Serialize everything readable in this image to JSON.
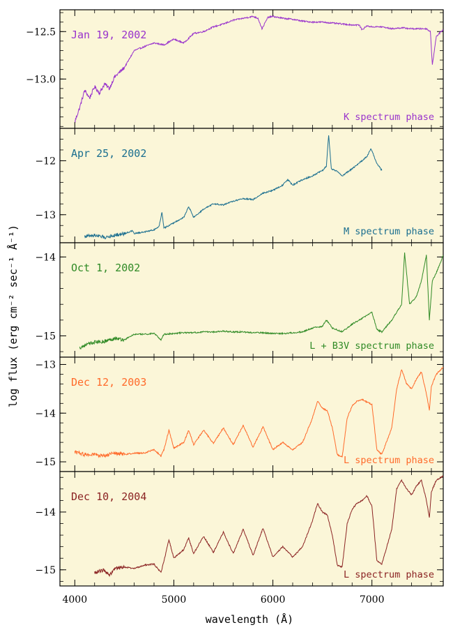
{
  "chart_data": {
    "type": "line",
    "xlabel": "wavelength (Å)",
    "ylabel": "log flux (erg cm⁻² sec⁻¹ Å⁻¹)",
    "xlim": [
      3850,
      7720
    ],
    "x_ticks": [
      4000,
      5000,
      6000,
      7000
    ],
    "background": "#fbf6d8",
    "panels": [
      {
        "date": "Jan 19, 2002",
        "phase": "K spectrum phase",
        "color": "#9933cc",
        "ylim": [
          -13.52,
          -12.27
        ],
        "y_ticks": [
          -13.0,
          -12.5
        ],
        "y_tick_labels": [
          "−13.0",
          "−12.5"
        ],
        "x": [
          4000,
          4050,
          4100,
          4150,
          4200,
          4250,
          4300,
          4350,
          4400,
          4500,
          4600,
          4700,
          4800,
          4900,
          5000,
          5100,
          5200,
          5300,
          5400,
          5500,
          5600,
          5700,
          5800,
          5850,
          5890,
          5950,
          6000,
          6100,
          6200,
          6300,
          6400,
          6500,
          6600,
          6700,
          6800,
          6870,
          6900,
          6950,
          7000,
          7100,
          7200,
          7300,
          7400,
          7500,
          7550,
          7590,
          7610,
          7650,
          7720
        ],
        "y": [
          -13.45,
          -13.3,
          -13.12,
          -13.2,
          -13.08,
          -13.15,
          -13.05,
          -13.1,
          -12.98,
          -12.88,
          -12.7,
          -12.66,
          -12.62,
          -12.64,
          -12.58,
          -12.62,
          -12.52,
          -12.5,
          -12.45,
          -12.42,
          -12.38,
          -12.36,
          -12.34,
          -12.36,
          -12.47,
          -12.35,
          -12.34,
          -12.36,
          -12.37,
          -12.39,
          -12.4,
          -12.4,
          -12.41,
          -12.42,
          -12.43,
          -12.43,
          -12.48,
          -12.44,
          -12.45,
          -12.45,
          -12.47,
          -12.46,
          -12.47,
          -12.47,
          -12.47,
          -12.5,
          -12.85,
          -12.55,
          -12.48
        ]
      },
      {
        "date": "Apr 25, 2002",
        "phase": "M spectrum phase",
        "color": "#1a6e8f",
        "ylim": [
          -13.52,
          -11.4
        ],
        "y_ticks": [
          -13,
          -12
        ],
        "y_tick_labels": [
          "−13",
          "−12"
        ],
        "x": [
          4100,
          4200,
          4300,
          4400,
          4500,
          4580,
          4600,
          4700,
          4800,
          4850,
          4880,
          4900,
          5000,
          5100,
          5150,
          5200,
          5300,
          5400,
          5500,
          5600,
          5700,
          5800,
          5900,
          6000,
          6100,
          6150,
          6200,
          6300,
          6400,
          6500,
          6540,
          6563,
          6590,
          6650,
          6700,
          6800,
          6900,
          6950,
          6990,
          7050,
          7100
        ],
        "y": [
          -13.4,
          -13.38,
          -13.42,
          -13.38,
          -13.35,
          -13.3,
          -13.35,
          -13.32,
          -13.28,
          -13.22,
          -12.95,
          -13.25,
          -13.15,
          -13.05,
          -12.85,
          -13.05,
          -12.9,
          -12.8,
          -12.82,
          -12.75,
          -12.7,
          -12.72,
          -12.6,
          -12.55,
          -12.45,
          -12.35,
          -12.45,
          -12.35,
          -12.28,
          -12.18,
          -12.1,
          -11.52,
          -12.15,
          -12.2,
          -12.28,
          -12.15,
          -12.0,
          -11.92,
          -11.78,
          -12.05,
          -12.18
        ]
      },
      {
        "date": "Oct  1, 2002",
        "phase": "L + B3V spectrum phase",
        "color": "#2f8a25",
        "ylim": [
          -15.27,
          -13.82
        ],
        "y_ticks": [
          -15,
          -14
        ],
        "y_tick_labels": [
          "−15",
          "−14"
        ],
        "x": [
          4050,
          4100,
          4150,
          4200,
          4300,
          4400,
          4500,
          4600,
          4700,
          4800,
          4870,
          4900,
          5000,
          5100,
          5200,
          5300,
          5400,
          5500,
          5600,
          5700,
          5800,
          5900,
          6000,
          6100,
          6200,
          6300,
          6400,
          6500,
          6540,
          6600,
          6700,
          6800,
          6900,
          7000,
          7050,
          7100,
          7200,
          7300,
          7330,
          7380,
          7450,
          7500,
          7550,
          7580,
          7610,
          7650,
          7720
        ],
        "y": [
          -15.15,
          -15.12,
          -15.1,
          -15.08,
          -15.07,
          -15.03,
          -15.05,
          -14.98,
          -14.98,
          -14.97,
          -15.05,
          -14.98,
          -14.97,
          -14.96,
          -14.96,
          -14.95,
          -14.95,
          -14.94,
          -14.95,
          -14.95,
          -14.96,
          -14.96,
          -14.97,
          -14.97,
          -14.96,
          -14.95,
          -14.9,
          -14.88,
          -14.8,
          -14.9,
          -14.95,
          -14.85,
          -14.78,
          -14.7,
          -14.92,
          -14.95,
          -14.8,
          -14.6,
          -13.95,
          -14.6,
          -14.5,
          -14.3,
          -13.98,
          -14.8,
          -14.3,
          -14.2,
          -13.98
        ]
      },
      {
        "date": "Dec 12, 2003",
        "phase": "L spectrum phase",
        "color": "#ff6a2a",
        "ylim": [
          -15.2,
          -12.85
        ],
        "y_ticks": [
          -15,
          -14,
          -13
        ],
        "y_tick_labels": [
          "−15",
          "−14",
          "−13"
        ],
        "x": [
          4000,
          4100,
          4200,
          4300,
          4400,
          4500,
          4600,
          4700,
          4800,
          4870,
          4900,
          4950,
          5000,
          5100,
          5150,
          5200,
          5300,
          5400,
          5500,
          5600,
          5700,
          5800,
          5900,
          6000,
          6100,
          6200,
          6300,
          6400,
          6450,
          6500,
          6550,
          6600,
          6650,
          6700,
          6750,
          6800,
          6850,
          6900,
          7000,
          7050,
          7100,
          7200,
          7250,
          7300,
          7350,
          7400,
          7450,
          7500,
          7550,
          7580,
          7600,
          7650,
          7720
        ],
        "y": [
          -14.8,
          -14.85,
          -14.85,
          -14.88,
          -14.82,
          -14.85,
          -14.82,
          -14.82,
          -14.75,
          -14.88,
          -14.75,
          -14.35,
          -14.72,
          -14.6,
          -14.35,
          -14.65,
          -14.35,
          -14.62,
          -14.3,
          -14.65,
          -14.25,
          -14.7,
          -14.28,
          -14.75,
          -14.6,
          -14.75,
          -14.6,
          -14.1,
          -13.75,
          -13.9,
          -13.95,
          -14.3,
          -14.85,
          -14.9,
          -14.1,
          -13.85,
          -13.75,
          -13.72,
          -13.82,
          -14.75,
          -14.85,
          -14.3,
          -13.5,
          -13.1,
          -13.4,
          -13.5,
          -13.3,
          -13.15,
          -13.6,
          -13.95,
          -13.45,
          -13.2,
          -13.05
        ]
      },
      {
        "date": "Dec 10, 2004",
        "phase": "L spectrum phase",
        "color": "#8b2323",
        "ylim": [
          -15.28,
          -13.3
        ],
        "y_ticks": [
          -15,
          -14
        ],
        "y_tick_labels": [
          "−15",
          "−14"
        ],
        "x": [
          4200,
          4300,
          4350,
          4400,
          4500,
          4600,
          4700,
          4800,
          4870,
          4900,
          4950,
          5000,
          5100,
          5150,
          5200,
          5300,
          5400,
          5500,
          5600,
          5700,
          5800,
          5900,
          6000,
          6100,
          6200,
          6300,
          6400,
          6450,
          6500,
          6550,
          6600,
          6650,
          6700,
          6750,
          6800,
          6850,
          6900,
          6950,
          7000,
          7050,
          7100,
          7200,
          7250,
          7300,
          7350,
          7400,
          7450,
          7500,
          7550,
          7580,
          7600,
          7650,
          7720
        ],
        "y": [
          -15.05,
          -15.0,
          -15.1,
          -14.98,
          -14.95,
          -14.98,
          -14.92,
          -14.9,
          -15.05,
          -14.85,
          -14.48,
          -14.8,
          -14.65,
          -14.45,
          -14.72,
          -14.42,
          -14.7,
          -14.35,
          -14.72,
          -14.3,
          -14.75,
          -14.28,
          -14.78,
          -14.6,
          -14.78,
          -14.6,
          -14.15,
          -13.85,
          -14.0,
          -14.05,
          -14.4,
          -14.92,
          -14.95,
          -14.2,
          -13.95,
          -13.85,
          -13.8,
          -13.72,
          -13.9,
          -14.85,
          -14.9,
          -14.3,
          -13.6,
          -13.45,
          -13.6,
          -13.7,
          -13.55,
          -13.45,
          -13.8,
          -14.1,
          -13.65,
          -13.45,
          -13.38
        ]
      }
    ]
  }
}
